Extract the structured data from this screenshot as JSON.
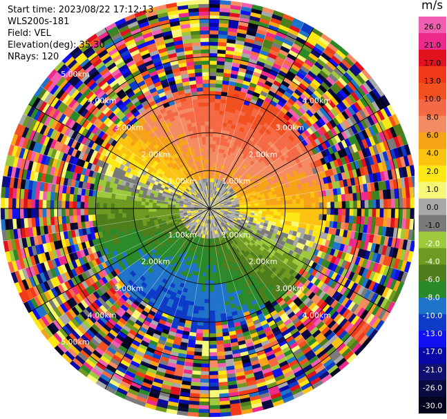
{
  "header": {
    "start_time": "Start time: 2023/08/22 17:12:13",
    "instrument": "WLS200s-181",
    "field": "Field: VEL",
    "elevation": "Elevation(deg): 35.30",
    "nrays": "NRays: 120"
  },
  "colorbar": {
    "unit": "m/s",
    "ticks": [
      "26.0",
      "21.0",
      "17.0",
      "13.0",
      "10.0",
      "8.0",
      "6.0",
      "4.0",
      "2.0",
      "1.0",
      "0.0",
      "-1.0",
      "-2.0",
      "-4.0",
      "-6.0",
      "-8.0",
      "-10.0",
      "-13.0",
      "-17.0",
      "-21.0",
      "-26.0",
      "-30.0"
    ],
    "colors": [
      "#f25fb2",
      "#ed2a8c",
      "#e0121e",
      "#f23a18",
      "#f2511f",
      "#f56a45",
      "#f58b62",
      "#f7a318",
      "#fbc20f",
      "#fde815",
      "#f8f878",
      "#a9a9a9",
      "#7a7a7a",
      "#9fc93c",
      "#6f9a22",
      "#4e7d1c",
      "#2a8a2a",
      "#1f74c9",
      "#0d3ac7",
      "#1010f0",
      "#0808a8",
      "#101070",
      "#0a0a40",
      "#050520"
    ],
    "dark_index_from": 12
  },
  "chart_data": {
    "type": "ppi",
    "field": "VEL",
    "units": "m/s",
    "nrays": 120,
    "elevation_deg": 35.3,
    "range_km": [
      0,
      5.5
    ],
    "range_rings_km": [
      1,
      2,
      3,
      4,
      5
    ],
    "spoke_angles_deg": [
      0,
      30,
      60,
      90,
      120,
      150,
      180,
      210,
      240,
      270,
      300,
      330
    ],
    "ring_labels": [
      {
        "text": "1.00km",
        "range_km": 1,
        "quadrant": "NE"
      },
      {
        "text": "2.00km",
        "range_km": 2,
        "quadrant": "NE"
      },
      {
        "text": "3.00km",
        "range_km": 3,
        "quadrant": "NE"
      },
      {
        "text": "4.00km",
        "range_km": 4,
        "quadrant": "NE"
      },
      {
        "text": "1.00km",
        "range_km": 1,
        "quadrant": "NW"
      },
      {
        "text": "2.00km",
        "range_km": 2,
        "quadrant": "NW"
      },
      {
        "text": "3.00km",
        "range_km": 3,
        "quadrant": "NW"
      },
      {
        "text": "4.00km",
        "range_km": 4,
        "quadrant": "NW"
      },
      {
        "text": "5.00km",
        "range_km": 5,
        "quadrant": "NW"
      },
      {
        "text": "1.00km",
        "range_km": 1,
        "quadrant": "SE"
      },
      {
        "text": "2.00km",
        "range_km": 2,
        "quadrant": "SE"
      },
      {
        "text": "3.00km",
        "range_km": 3,
        "quadrant": "SE"
      },
      {
        "text": "4.00km",
        "range_km": 4,
        "quadrant": "SE"
      },
      {
        "text": "1.00km",
        "range_km": 1,
        "quadrant": "SW"
      },
      {
        "text": "2.00km",
        "range_km": 2,
        "quadrant": "SW"
      },
      {
        "text": "3.00km",
        "range_km": 3,
        "quadrant": "SW"
      },
      {
        "text": "4.00km",
        "range_km": 4,
        "quadrant": "SW"
      },
      {
        "text": "5.00km",
        "range_km": 5,
        "quadrant": "SW"
      }
    ],
    "valid_data_range_km": 3.1,
    "pattern": "velocity dipole: positive 6 to 13 m/s toward north, negative -6 to -13 m/s toward south-east, near zero around center, noisy random values beyond ~3 km"
  }
}
